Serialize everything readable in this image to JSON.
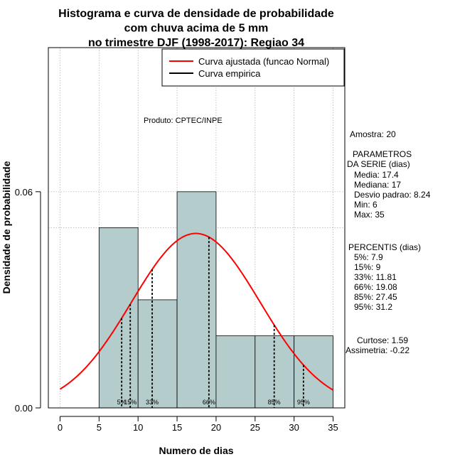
{
  "chart_data": {
    "type": "bar",
    "title_lines": [
      "Histograma e curva de densidade de probabilidade",
      "com chuva acima de 5 mm",
      "no trimestre DJF (1998-2017): Regiao 34"
    ],
    "xlabel": "Numero de dias",
    "ylabel": "Densidade de probabilidade",
    "xlim": [
      -1.5,
      36.5
    ],
    "ylim": [
      0,
      0.1
    ],
    "x_ticks": [
      0,
      5,
      10,
      15,
      20,
      25,
      30,
      35
    ],
    "x_tick_labels": [
      "0",
      "5",
      "10",
      "15",
      "20",
      "25",
      "30",
      "35"
    ],
    "y_ticks": [
      0.0,
      0.06
    ],
    "y_tick_labels": [
      "0.00",
      "0.06"
    ],
    "grid": true,
    "grid_x": [
      0,
      5,
      10,
      15,
      20,
      25,
      30,
      35
    ],
    "grid_y": [
      0.0,
      0.05,
      0.06,
      0.1
    ],
    "bins": [
      {
        "from": 5,
        "to": 10,
        "density": 0.05
      },
      {
        "from": 10,
        "to": 15,
        "density": 0.03
      },
      {
        "from": 15,
        "to": 20,
        "density": 0.06
      },
      {
        "from": 20,
        "to": 25,
        "density": 0.02
      },
      {
        "from": 25,
        "to": 30,
        "density": 0.02
      },
      {
        "from": 30,
        "to": 35,
        "density": 0.02
      }
    ],
    "normal_curve": {
      "mean": 17.4,
      "sd": 8.24,
      "x_from": 0,
      "x_to": 35
    },
    "percentiles": [
      {
        "label": "5%",
        "x": 7.9
      },
      {
        "label": "15%",
        "x": 9
      },
      {
        "label": "33%",
        "x": 11.81
      },
      {
        "label": "66%",
        "x": 19.08
      },
      {
        "label": "85%",
        "x": 27.45
      },
      {
        "label": "95%",
        "x": 31.2
      }
    ],
    "legend": [
      {
        "label": "Curva ajustada (funcao Normal)",
        "color": "#ff0000"
      },
      {
        "label": "Curva empirica",
        "color": "#000000"
      }
    ],
    "legend_position": "top-right",
    "annotation": "Produto: CPTEC/INPE",
    "colors": {
      "bar_fill": "#b5cccc",
      "curve": "#ff0000",
      "grid": "#aaaaaa"
    }
  },
  "stats": {
    "amostra": "Amostra: 20",
    "param_header1": "PARAMETROS",
    "param_header2": "DA SERIE (dias)",
    "media": "Media: 17.4",
    "mediana": "Mediana: 17",
    "desvio": "Desvio padrao: 8.24",
    "min": "Min: 6",
    "max": "Max: 35",
    "perc_header": "PERCENTIS (dias)",
    "p5": "5%: 7.9",
    "p15": "15%: 9",
    "p33": "33%: 11.81",
    "p66": "66%: 19.08",
    "p85": "85%: 27.45",
    "p95": "95%: 31.2",
    "curtose": "Curtose: 1.59",
    "assimetria": "Assimetria: -0.22"
  }
}
